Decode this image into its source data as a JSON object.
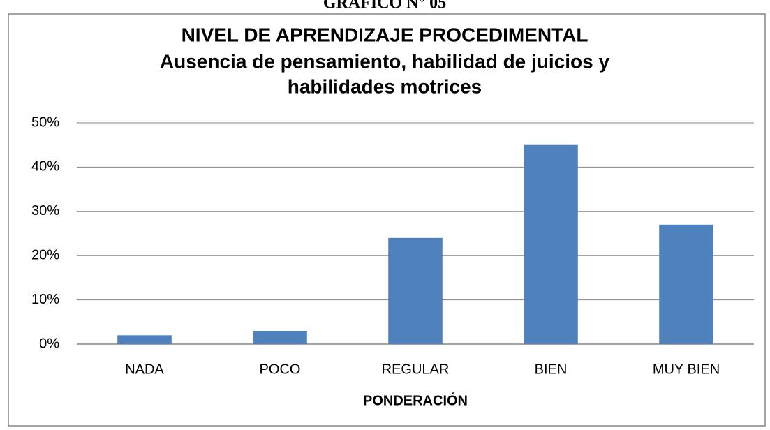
{
  "header": "GRÁFICO N° 05",
  "chart_data": {
    "type": "bar",
    "title": "NIVEL DE APRENDIZAJE PROCEDIMENTAL",
    "subtitle": [
      "Ausencia de pensamiento, habilidad de juicios y",
      "habilidades motrices"
    ],
    "x_label": "PONDERACIÓN",
    "categories": [
      "NADA",
      "POCO",
      "REGULAR",
      "BIEN",
      "MUY BIEN"
    ],
    "values": [
      2,
      3,
      24,
      45,
      27
    ],
    "color": "#4f81bd",
    "ylim": [
      0,
      50
    ],
    "yticks": [
      {
        "value": 0,
        "label": "0%"
      },
      {
        "value": 10,
        "label": "10%"
      },
      {
        "value": 20,
        "label": "20%"
      },
      {
        "value": 30,
        "label": "30%"
      },
      {
        "value": 40,
        "label": "40%"
      },
      {
        "value": 50,
        "label": "50%"
      }
    ],
    "grid": true
  }
}
